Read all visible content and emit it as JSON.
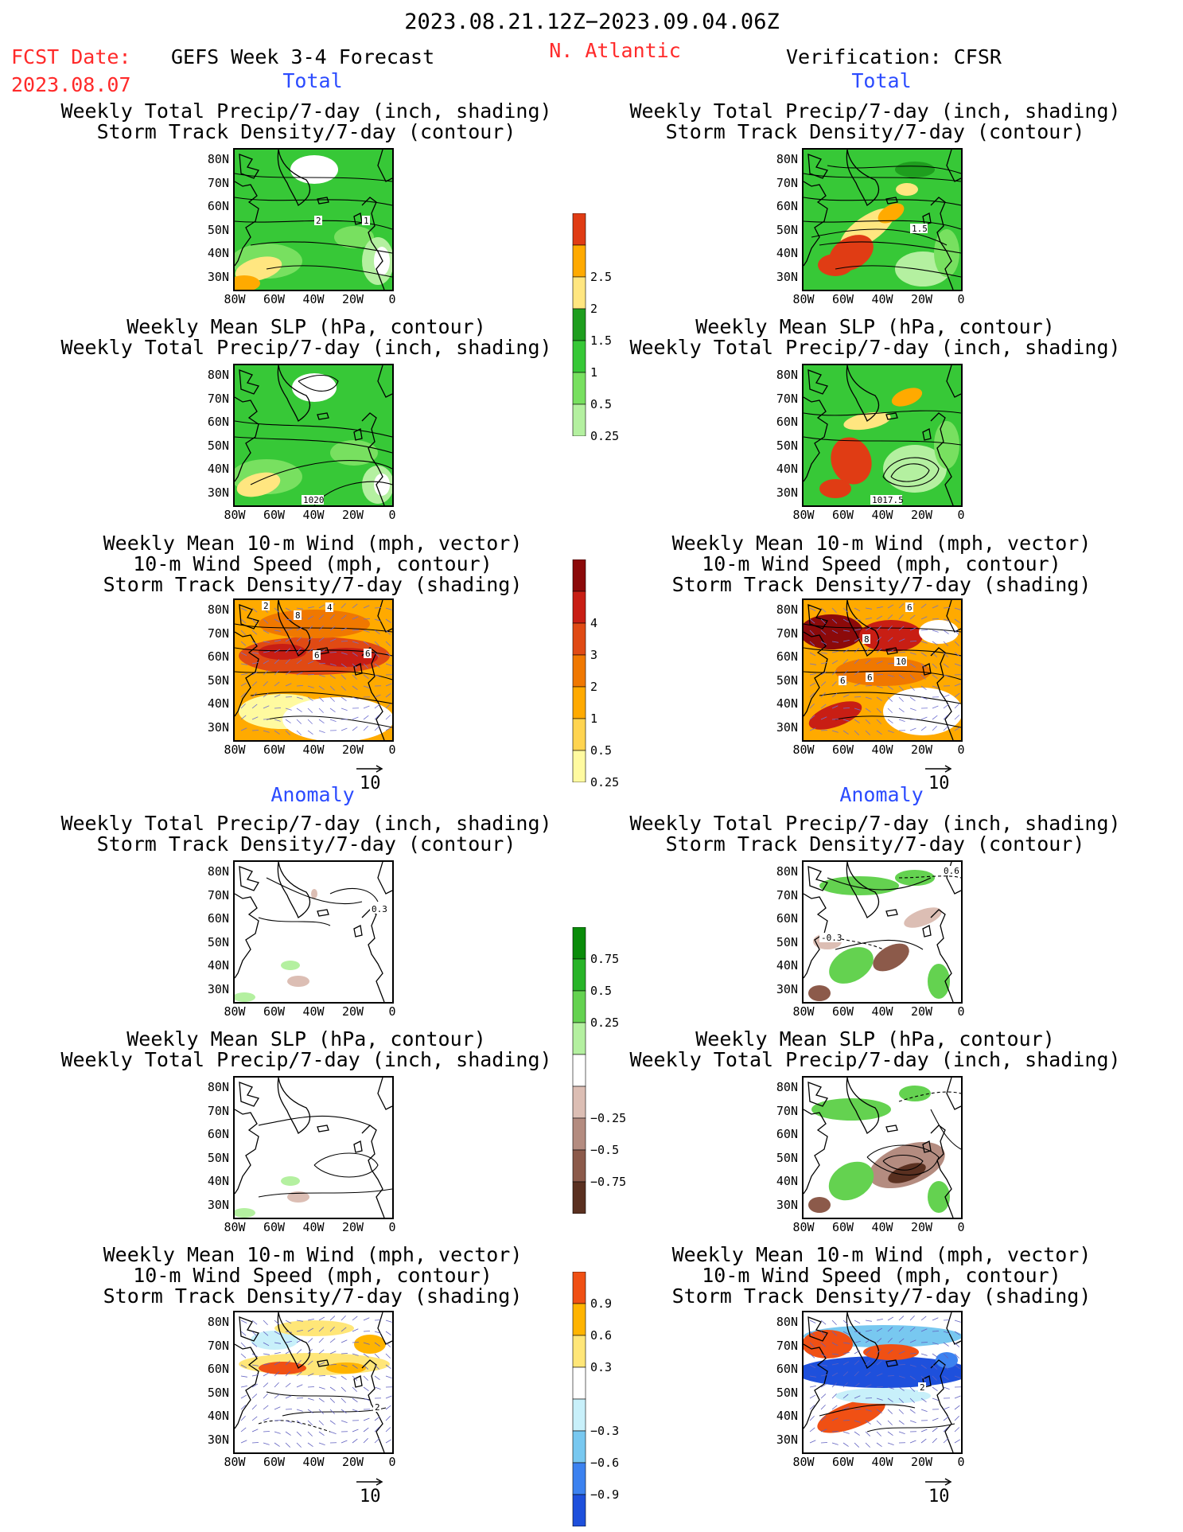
{
  "header": {
    "date_range": "2023.08.21.12Z−2023.09.04.06Z",
    "fcst_label": "FCST Date:",
    "fcst_date": "2023.08.07",
    "model": "GEFS Week 3-4 Forecast",
    "region": "N. Atlantic",
    "verification": "Verification: CFSR"
  },
  "sections": {
    "total_left": "Total",
    "total_right": "Total",
    "anom_left": "Anomaly",
    "anom_right": "Anomaly"
  },
  "titles": {
    "precip_storm": [
      "Weekly Total Precip/7-day (inch, shading)",
      "Storm Track Density/7-day (contour)"
    ],
    "slp_precip": [
      "Weekly Mean SLP (hPa, contour)",
      "Weekly Total Precip/7-day (inch, shading)"
    ],
    "wind": [
      "Weekly Mean 10-m Wind (mph, vector)",
      "10-m Wind Speed (mph, contour)",
      "Storm Track Density/7-day (shading)"
    ]
  },
  "axes": {
    "lat_labels": [
      "80N",
      "70N",
      "60N",
      "50N",
      "40N",
      "30N"
    ],
    "lon_labels": [
      "80W",
      "60W",
      "40W",
      "20W",
      "0"
    ]
  },
  "vector_ref": "10",
  "contour_labels": {
    "p1_a": "2",
    "p1_b": "1",
    "p1_r": "1.5",
    "p2_l": "1020",
    "p2_r": "1017.5",
    "p3_l1": "2",
    "p3_l2": "8",
    "p3_l3": "6",
    "p3_l4": "4",
    "p3_r1": "6",
    "p3_r2": "8",
    "p3_r3": "10",
    "p3_r4": "6",
    "p3_r5": "6",
    "a1_l": "0.3",
    "a1_r": "0.6",
    "a1_r2": "-0.3",
    "a3_r": "2",
    "a3_l": "-2"
  },
  "colorbars": {
    "precip": {
      "colors": [
        "#b4f0a0",
        "#78e060",
        "#37c837",
        "#1e9e1e",
        "#ffe680",
        "#ffaa00",
        "#e03c14"
      ],
      "labels": [
        "0.25",
        "0.5",
        "1",
        "1.5",
        "2",
        "2.5"
      ]
    },
    "storm": {
      "colors": [
        "#fffaa0",
        "#ffd450",
        "#ffaa00",
        "#f07800",
        "#e04a14",
        "#c81e14",
        "#8c0a0a"
      ],
      "labels": [
        "0.25",
        "0.5",
        "1",
        "2",
        "3",
        "4"
      ]
    },
    "precip_anom": {
      "colors": [
        "#5a3020",
        "#8c5a4a",
        "#b48c80",
        "#dcbeb4",
        "#ffffff",
        "#b4f0a0",
        "#64d250",
        "#28b428",
        "#0a8c0a"
      ],
      "labels": [
        "−0.75",
        "−0.5",
        "−0.25",
        "0.25",
        "0.5",
        "0.75"
      ]
    },
    "wind_anom": {
      "colors": [
        "#1e50dc",
        "#3c82f0",
        "#78c8f0",
        "#c8f0fa",
        "#ffffff",
        "#ffe678",
        "#ffb400",
        "#f05014"
      ],
      "labels": [
        "−0.9",
        "−0.6",
        "−0.3",
        "0.3",
        "0.6",
        "0.9"
      ]
    }
  }
}
